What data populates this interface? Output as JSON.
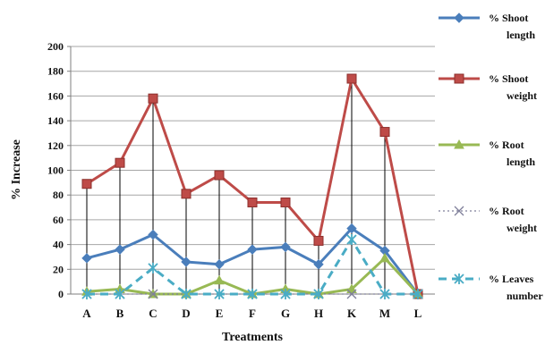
{
  "chart_data": {
    "type": "line",
    "title": "",
    "xlabel": "Treatments",
    "ylabel": "% Increase",
    "categories": [
      "A",
      "B",
      "C",
      "D",
      "E",
      "F",
      "G",
      "H",
      "K",
      "M",
      "L"
    ],
    "ylim": [
      0,
      200
    ],
    "yticks": [
      0,
      20,
      40,
      60,
      80,
      100,
      120,
      140,
      160,
      180,
      200
    ],
    "grid": true,
    "drop_lines": true,
    "legend_position": "right",
    "series": [
      {
        "name_lines": [
          "% Shoot",
          "length"
        ],
        "color": "#4a7ebb",
        "dash": "solid",
        "marker": "diamond",
        "values": [
          29,
          36,
          48,
          26,
          24,
          36,
          38,
          24,
          53,
          35,
          0
        ]
      },
      {
        "name_lines": [
          "% Shoot",
          "weight"
        ],
        "color": "#be4b48",
        "dash": "solid",
        "marker": "square",
        "values": [
          89,
          106,
          158,
          81,
          96,
          74,
          74,
          43,
          174,
          131,
          0
        ]
      },
      {
        "name_lines": [
          "% Root",
          "length"
        ],
        "color": "#98b954",
        "dash": "solid",
        "marker": "triangle",
        "values": [
          2,
          4,
          0,
          0,
          11,
          0,
          4,
          0,
          4,
          29,
          0
        ]
      },
      {
        "name_lines": [
          "% Root",
          "weight"
        ],
        "color": "#7f7f9a",
        "dash": "dotted",
        "marker": "x",
        "values": [
          0,
          0,
          0,
          0,
          0,
          0,
          0,
          0,
          0,
          0,
          0
        ]
      },
      {
        "name_lines": [
          "% Leaves",
          "number"
        ],
        "color": "#4aacc5",
        "dash": "dashed",
        "marker": "asterisk",
        "values": [
          0,
          0,
          21,
          0,
          0,
          0,
          0,
          0,
          44,
          0,
          0
        ]
      }
    ]
  }
}
